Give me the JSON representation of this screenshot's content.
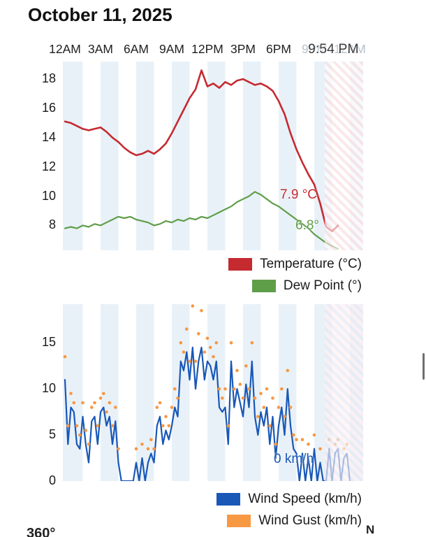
{
  "header": {
    "title": "October 11, 2025",
    "current_time_label": "9:54 PM"
  },
  "colors": {
    "temperature": "#c52a31",
    "dew_point": "#5f9e49",
    "wind_speed": "#1958b7",
    "wind_gust": "#f79843",
    "stripe_band": "#e9f1f8",
    "faded_axis_label": "#b4bfca"
  },
  "chart_data": [
    {
      "type": "line",
      "title": "Temperature and Dew Point",
      "x_unit": "hours_since_midnight",
      "x_range": [
        0,
        25
      ],
      "x_tick_hours": [
        0,
        3,
        6,
        9,
        12,
        15,
        18,
        21,
        24
      ],
      "x_tick_labels": [
        "12AM",
        "3AM",
        "6AM",
        "9AM",
        "12PM",
        "3PM",
        "6PM",
        "9PM",
        "12AM"
      ],
      "x_faded_from_index": 7,
      "ylim": [
        6.3,
        19.2
      ],
      "y_ticks": [
        8,
        10,
        12,
        14,
        16,
        18
      ],
      "grid": false,
      "legend_position": "bottom-right",
      "now_hour": 21.9,
      "series": [
        {
          "name": "Temperature (°C)",
          "color": "#c52a31",
          "width": 2.6,
          "step_hours": 0.5,
          "values": [
            15.1,
            15.0,
            14.8,
            14.6,
            14.5,
            14.6,
            14.7,
            14.4,
            14.0,
            13.7,
            13.3,
            13.0,
            12.8,
            12.9,
            13.1,
            12.9,
            13.2,
            13.6,
            14.3,
            15.1,
            15.9,
            16.7,
            17.3,
            18.6,
            17.5,
            17.7,
            17.4,
            17.8,
            17.6,
            17.9,
            18.0,
            17.8,
            17.6,
            17.7,
            17.5,
            17.2,
            16.5,
            15.6,
            14.3,
            13.2,
            12.3,
            11.5,
            10.8,
            9.5,
            7.9,
            7.6,
            8.0
          ]
        },
        {
          "name": "Dew Point (°)",
          "color": "#5f9e49",
          "width": 2.2,
          "step_hours": 0.5,
          "values": [
            7.8,
            7.9,
            7.8,
            8.0,
            7.9,
            8.1,
            8.0,
            8.2,
            8.4,
            8.6,
            8.5,
            8.6,
            8.4,
            8.3,
            8.2,
            8.0,
            8.1,
            8.3,
            8.2,
            8.4,
            8.3,
            8.5,
            8.4,
            8.6,
            8.5,
            8.7,
            8.9,
            9.1,
            9.3,
            9.6,
            9.8,
            10.0,
            10.3,
            10.1,
            9.8,
            9.5,
            9.3,
            9.0,
            8.7,
            8.4,
            8.1,
            7.8,
            7.4,
            7.1,
            6.8,
            6.6,
            6.4
          ]
        }
      ],
      "annotations": [
        {
          "text": "7.9 °C",
          "color": "#c52a31",
          "meaning": "current temperature"
        },
        {
          "text": "6.8°",
          "color": "#5f9e49",
          "meaning": "current dew point"
        }
      ]
    },
    {
      "type": "line-scatter",
      "title": "Wind Speed and Gust",
      "x_unit": "hours_since_midnight",
      "x_range": [
        0,
        25
      ],
      "ylim": [
        0,
        19.2
      ],
      "y_ticks": [
        0,
        5,
        10,
        15
      ],
      "grid": false,
      "legend_position": "bottom-right",
      "now_hour": 21.9,
      "series": [
        {
          "name": "Wind Speed (km/h)",
          "color": "#1958b7",
          "width": 2.2,
          "step_hours": 0.25,
          "values": [
            11,
            4,
            8,
            7.5,
            4,
            3.5,
            7,
            4,
            2,
            6.5,
            7,
            4,
            7.5,
            8,
            6,
            7,
            4,
            6.5,
            2,
            0,
            0,
            0,
            0,
            0,
            2,
            0,
            2.5,
            0,
            2,
            3,
            2,
            6,
            7,
            4,
            5.5,
            4.5,
            6,
            8,
            7,
            13,
            12,
            14,
            11,
            14.5,
            10,
            13,
            14.5,
            11,
            13,
            12.5,
            11,
            13,
            8,
            7.5,
            8,
            4,
            13,
            8,
            10,
            8.5,
            7,
            10.5,
            8,
            13,
            7,
            5,
            7.5,
            6,
            8,
            4,
            7,
            2.5,
            6,
            8,
            5,
            10,
            6,
            3.5,
            3,
            0,
            3,
            0,
            2.5,
            0,
            3.5,
            0,
            2,
            0,
            0,
            3.5,
            0,
            3,
            3.5,
            0,
            2.5,
            3,
            0
          ]
        }
      ],
      "scatter": {
        "name": "Wind Gust (km/h)",
        "color": "#f79843",
        "step_hours": 0.25,
        "values": [
          13.5,
          6,
          9.5,
          8.5,
          6,
          5,
          8.5,
          5.5,
          4,
          8,
          8.5,
          6,
          9,
          9.5,
          7.5,
          8.5,
          6,
          8,
          3.5,
          0,
          0,
          0,
          0,
          0,
          3.5,
          0,
          4,
          0,
          3.5,
          4.5,
          3.5,
          8,
          8.5,
          6,
          7,
          6,
          8,
          10,
          9,
          15,
          14,
          16.5,
          13,
          19,
          13,
          16,
          18.5,
          14,
          15.5,
          14.5,
          13.5,
          15,
          10,
          9,
          10,
          6,
          15,
          10,
          12,
          10.5,
          9,
          12.5,
          10,
          15,
          9,
          7,
          9.5,
          8,
          10,
          6,
          9,
          4,
          8,
          10,
          7,
          12,
          8,
          5,
          4.5,
          0,
          4.5,
          0,
          4,
          0,
          5,
          0,
          3.5,
          0,
          0,
          4.5,
          0,
          4,
          4.5,
          0,
          3.5,
          4,
          0
        ]
      },
      "annotations": [
        {
          "text": "0 km/h",
          "color": "#1958b7",
          "meaning": "current wind speed"
        }
      ]
    }
  ],
  "footer": {
    "left_label": "360°",
    "right_label": "N"
  }
}
